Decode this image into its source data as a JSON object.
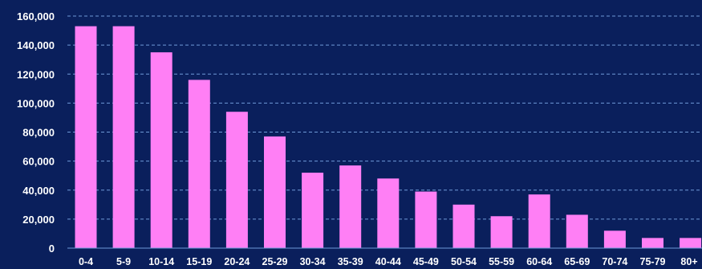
{
  "chart_data": {
    "type": "bar",
    "categories": [
      "0-4",
      "5-9",
      "10-14",
      "15-19",
      "20-24",
      "25-29",
      "30-34",
      "35-39",
      "40-44",
      "45-49",
      "50-54",
      "55-59",
      "60-64",
      "65-69",
      "70-74",
      "75-79",
      "80+"
    ],
    "values": [
      153000,
      153000,
      135000,
      116000,
      94000,
      77000,
      52000,
      57000,
      48000,
      39000,
      30000,
      22000,
      37000,
      23000,
      12000,
      7000,
      7000
    ],
    "y_ticks": [
      "0",
      "20,000",
      "40,000",
      "60,000",
      "80,000",
      "100,000",
      "120,000",
      "140,000",
      "160,000"
    ],
    "ylim": [
      0,
      160000
    ],
    "grid": true,
    "title": "",
    "xlabel": "",
    "ylabel": ""
  },
  "colors": {
    "background": "#0a1f5c",
    "bar": "#ff7ff5",
    "gridline": "#6f9ad8",
    "text": "#ffffff"
  }
}
